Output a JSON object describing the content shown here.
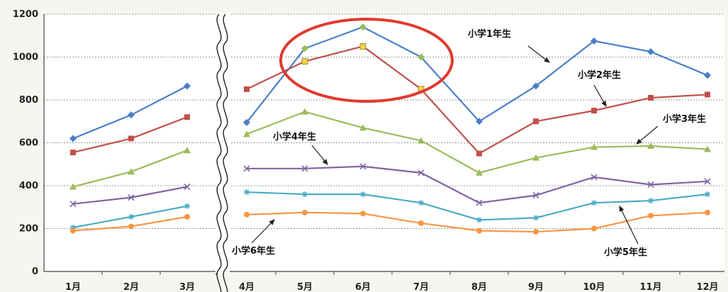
{
  "chart_data": {
    "type": "line",
    "categories": [
      "1月",
      "2月",
      "3月",
      "4月",
      "5月",
      "6月",
      "7月",
      "8月",
      "9月",
      "10月",
      "11月",
      "12月"
    ],
    "ylim": [
      0,
      1200
    ],
    "yticks": [
      0,
      200,
      400,
      600,
      800,
      1000,
      1200
    ],
    "ytick_labels": [
      "0",
      "200",
      "400",
      "600",
      "800",
      "1000",
      "1200"
    ],
    "grid": true,
    "axis_break_after": "3月",
    "series": [
      {
        "name": "小学1年生",
        "color": "#4a7fc9",
        "marker": "diamond",
        "values": [
          620,
          730,
          865,
          695,
          1040,
          1140,
          1000,
          700,
          865,
          1075,
          1025,
          915
        ]
      },
      {
        "name": "小学2年生",
        "color": "#c0504d",
        "marker": "square",
        "values": [
          555,
          620,
          720,
          850,
          980,
          1050,
          850,
          550,
          700,
          750,
          810,
          825
        ]
      },
      {
        "name": "小学3年生",
        "color": "#9bbb59",
        "marker": "triangle",
        "values": [
          395,
          465,
          565,
          640,
          745,
          670,
          610,
          460,
          530,
          580,
          585,
          570
        ]
      },
      {
        "name": "小学4年生",
        "color": "#8064a2",
        "marker": "cross",
        "values": [
          315,
          345,
          395,
          480,
          480,
          490,
          460,
          320,
          355,
          440,
          405,
          420
        ]
      },
      {
        "name": "小学5年生",
        "color": "#4bacc6",
        "marker": "star",
        "values": [
          205,
          255,
          305,
          370,
          360,
          360,
          320,
          240,
          250,
          320,
          330,
          360
        ]
      },
      {
        "name": "小学6年生",
        "color": "#f79646",
        "marker": "circle",
        "values": [
          190,
          210,
          255,
          265,
          275,
          270,
          225,
          190,
          185,
          200,
          260,
          275
        ]
      }
    ],
    "highlight": {
      "shape": "ellipse",
      "color": "#e03a2f",
      "categories": [
        "5月",
        "6月",
        "7月"
      ],
      "values": [
        1040,
        1140,
        1000
      ]
    }
  }
}
